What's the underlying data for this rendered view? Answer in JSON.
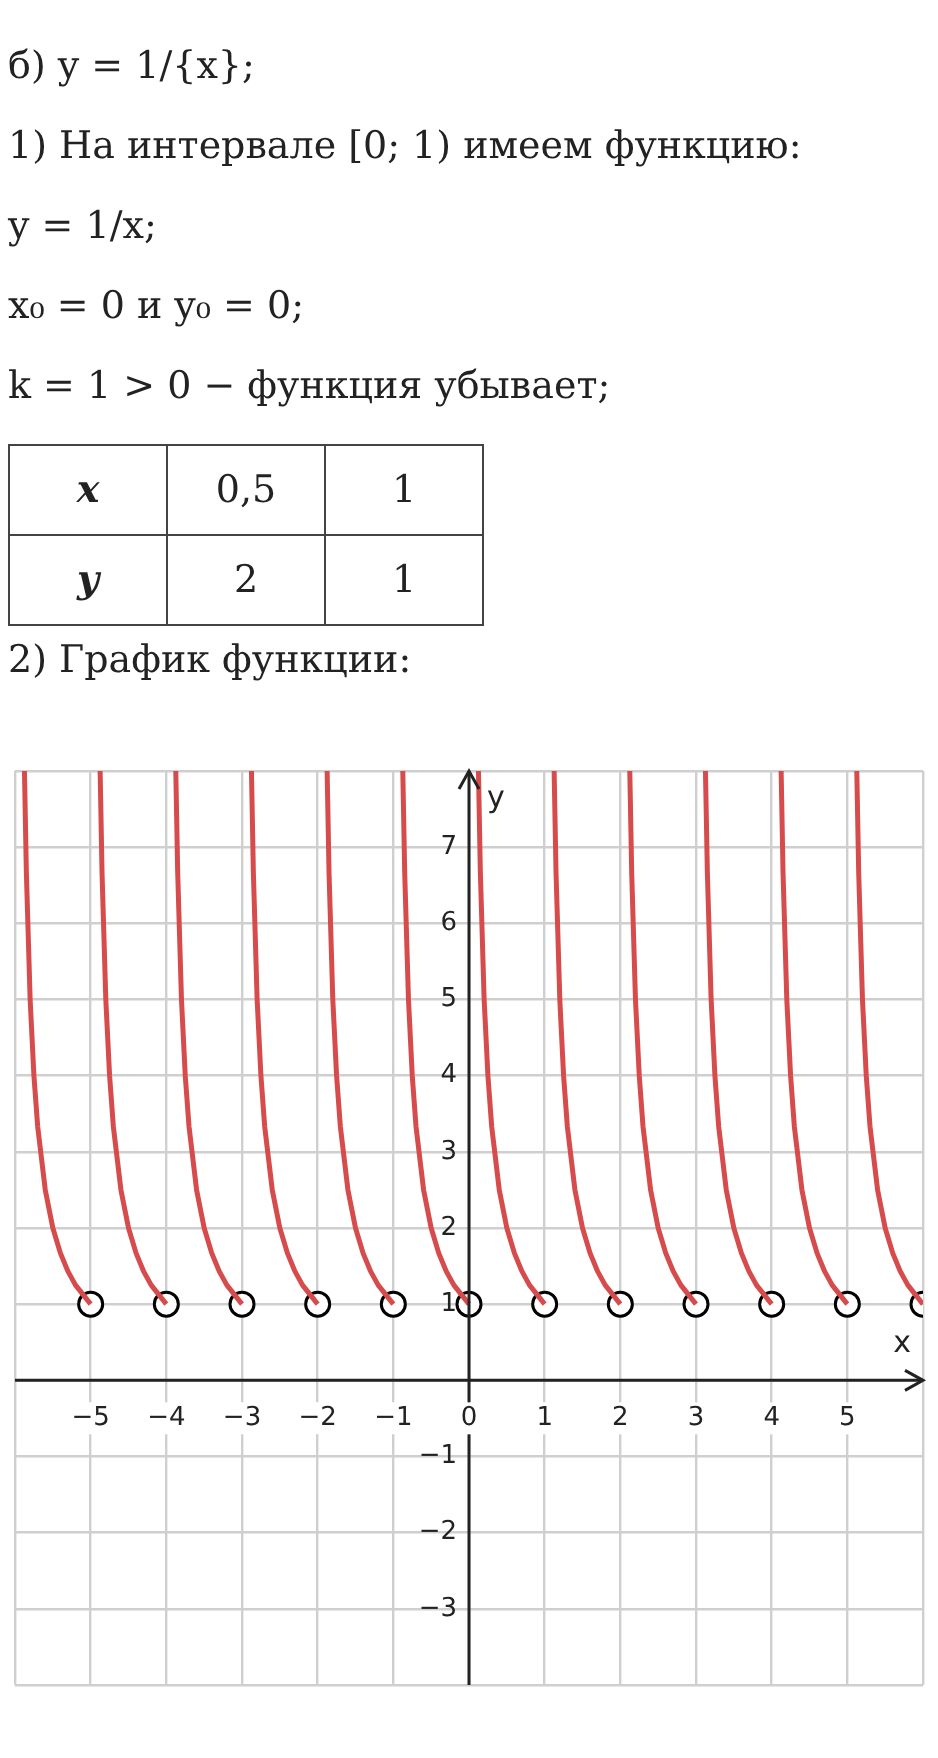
{
  "chart_data": {
    "type": "line",
    "annotations": [
      "б) y = 1/{x};",
      "1) На интервале [0;  1) имеем функцию:",
      "y = 1/x;",
      "x₀ = 0  и  y₀ = 0;",
      "k = 1 > 0 − функция убывает;",
      "x",
      "0,5",
      "1",
      "y",
      "2",
      "1",
      "2) График функции:"
    ],
    "xlabel": "x",
    "ylabel": "y",
    "xlim": [
      -6,
      6
    ],
    "ylim": [
      -4,
      8
    ],
    "xticks": [
      -5,
      -4,
      -3,
      -2,
      -1,
      0,
      1,
      2,
      3,
      4,
      5
    ],
    "yticks": [
      -3,
      -2,
      -1,
      1,
      2,
      3,
      4,
      5,
      6,
      7
    ],
    "grid": true,
    "legend": false,
    "marker": "none",
    "line_style": "solid",
    "series": [
      {
        "color": "#d64b4b",
        "x": [
          -5.875,
          -5.85,
          -5.8,
          -5.75,
          -5.7,
          -5.6,
          -5.5,
          -5.4,
          -5.3,
          -5.2,
          -5
        ],
        "values": [
          8,
          6.67,
          5,
          4,
          3.33,
          2.5,
          2,
          1.67,
          1.43,
          1.25,
          1
        ]
      },
      {
        "color": "#d64b4b",
        "x": [
          -4.875,
          -4.85,
          -4.8,
          -4.75,
          -4.7,
          -4.6,
          -4.5,
          -4.4,
          -4.3,
          -4.2,
          -4
        ],
        "values": [
          8,
          6.67,
          5,
          4,
          3.33,
          2.5,
          2,
          1.67,
          1.43,
          1.25,
          1
        ]
      },
      {
        "color": "#d64b4b",
        "x": [
          -3.875,
          -3.85,
          -3.8,
          -3.75,
          -3.7,
          -3.6,
          -3.5,
          -3.4,
          -3.3,
          -3.2,
          -3
        ],
        "values": [
          8,
          6.67,
          5,
          4,
          3.33,
          2.5,
          2,
          1.67,
          1.43,
          1.25,
          1
        ]
      },
      {
        "color": "#d64b4b",
        "x": [
          -2.875,
          -2.85,
          -2.8,
          -2.75,
          -2.7,
          -2.6,
          -2.5,
          -2.4,
          -2.3,
          -2.2,
          -2
        ],
        "values": [
          8,
          6.67,
          5,
          4,
          3.33,
          2.5,
          2,
          1.67,
          1.43,
          1.25,
          1
        ]
      },
      {
        "color": "#d64b4b",
        "x": [
          -1.875,
          -1.85,
          -1.8,
          -1.75,
          -1.7,
          -1.6,
          -1.5,
          -1.4,
          -1.3,
          -1.2,
          -1
        ],
        "values": [
          8,
          6.67,
          5,
          4,
          3.33,
          2.5,
          2,
          1.67,
          1.43,
          1.25,
          1
        ]
      },
      {
        "color": "#d64b4b",
        "x": [
          -0.875,
          -0.85,
          -0.8,
          -0.75,
          -0.7,
          -0.6,
          -0.5,
          -0.4,
          -0.3,
          -0.2,
          0
        ],
        "values": [
          8,
          6.67,
          5,
          4,
          3.33,
          2.5,
          2,
          1.67,
          1.43,
          1.25,
          1
        ]
      },
      {
        "color": "#d64b4b",
        "x": [
          0.125,
          0.15,
          0.2,
          0.25,
          0.3,
          0.4,
          0.5,
          0.6,
          0.7,
          0.8,
          1
        ],
        "values": [
          8,
          6.67,
          5,
          4,
          3.33,
          2.5,
          2,
          1.67,
          1.43,
          1.25,
          1
        ]
      },
      {
        "color": "#d64b4b",
        "x": [
          1.125,
          1.15,
          1.2,
          1.25,
          1.3,
          1.4,
          1.5,
          1.6,
          1.7,
          1.8,
          2
        ],
        "values": [
          8,
          6.67,
          5,
          4,
          3.33,
          2.5,
          2,
          1.67,
          1.43,
          1.25,
          1
        ]
      },
      {
        "color": "#d64b4b",
        "x": [
          2.125,
          2.15,
          2.2,
          2.25,
          2.3,
          2.4,
          2.5,
          2.6,
          2.7,
          2.8,
          3
        ],
        "values": [
          8,
          6.67,
          5,
          4,
          3.33,
          2.5,
          2,
          1.67,
          1.43,
          1.25,
          1
        ]
      },
      {
        "color": "#d64b4b",
        "x": [
          3.125,
          3.15,
          3.2,
          3.25,
          3.3,
          3.4,
          3.5,
          3.6,
          3.7,
          3.8,
          4
        ],
        "values": [
          8,
          6.67,
          5,
          4,
          3.33,
          2.5,
          2,
          1.67,
          1.43,
          1.25,
          1
        ]
      },
      {
        "color": "#d64b4b",
        "x": [
          4.125,
          4.15,
          4.2,
          4.25,
          4.3,
          4.4,
          4.5,
          4.6,
          4.7,
          4.8,
          5
        ],
        "values": [
          8,
          6.67,
          5,
          4,
          3.33,
          2.5,
          2,
          1.67,
          1.43,
          1.25,
          1
        ]
      },
      {
        "color": "#d64b4b",
        "x": [
          5.125,
          5.15,
          5.2,
          5.25,
          5.3,
          5.4,
          5.5,
          5.6,
          5.7,
          5.8,
          6
        ],
        "values": [
          8,
          6.67,
          5,
          4,
          3.33,
          2.5,
          2,
          1.67,
          1.43,
          1.25,
          1
        ]
      },
      {
        "type": "scatter",
        "marker": "circle",
        "color": "#000000",
        "x": [
          -5,
          -4,
          -3,
          -2,
          -1,
          0,
          1,
          2,
          3,
          4,
          5,
          6
        ],
        "values": [
          1,
          1,
          1,
          1,
          1,
          1,
          1,
          1,
          1,
          1,
          1,
          1
        ]
      }
    ]
  }
}
